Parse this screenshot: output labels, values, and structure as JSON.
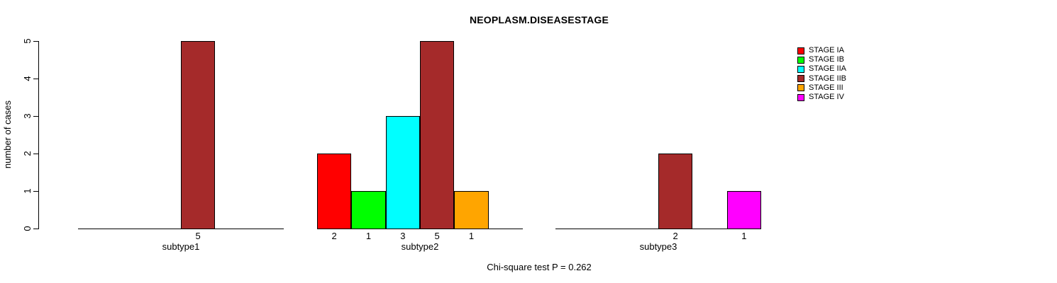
{
  "chart_data": {
    "type": "bar",
    "title": "NEOPLASM.DISEASESTAGE",
    "ylabel": "number of cases",
    "xlabel": "",
    "ylim": [
      0,
      5
    ],
    "yticks": [
      0,
      1,
      2,
      3,
      4,
      5
    ],
    "grid": false,
    "legend_position": "right",
    "footnote": "Chi-square test P = 0.262",
    "stages": [
      {
        "name": "STAGE IA",
        "color": "#FF0000"
      },
      {
        "name": "STAGE IB",
        "color": "#00FF00"
      },
      {
        "name": "STAGE IIA",
        "color": "#00FFFF"
      },
      {
        "name": "STAGE IIB",
        "color": "#A52A2A"
      },
      {
        "name": "STAGE III",
        "color": "#FFA500"
      },
      {
        "name": "STAGE IV",
        "color": "#FF00FF"
      }
    ],
    "groups": [
      {
        "label": "subtype1",
        "values": [
          0,
          0,
          0,
          5,
          0,
          0
        ]
      },
      {
        "label": "subtype2",
        "values": [
          2,
          1,
          3,
          5,
          1,
          0
        ]
      },
      {
        "label": "subtype3",
        "values": [
          0,
          0,
          0,
          2,
          0,
          1
        ]
      }
    ]
  }
}
